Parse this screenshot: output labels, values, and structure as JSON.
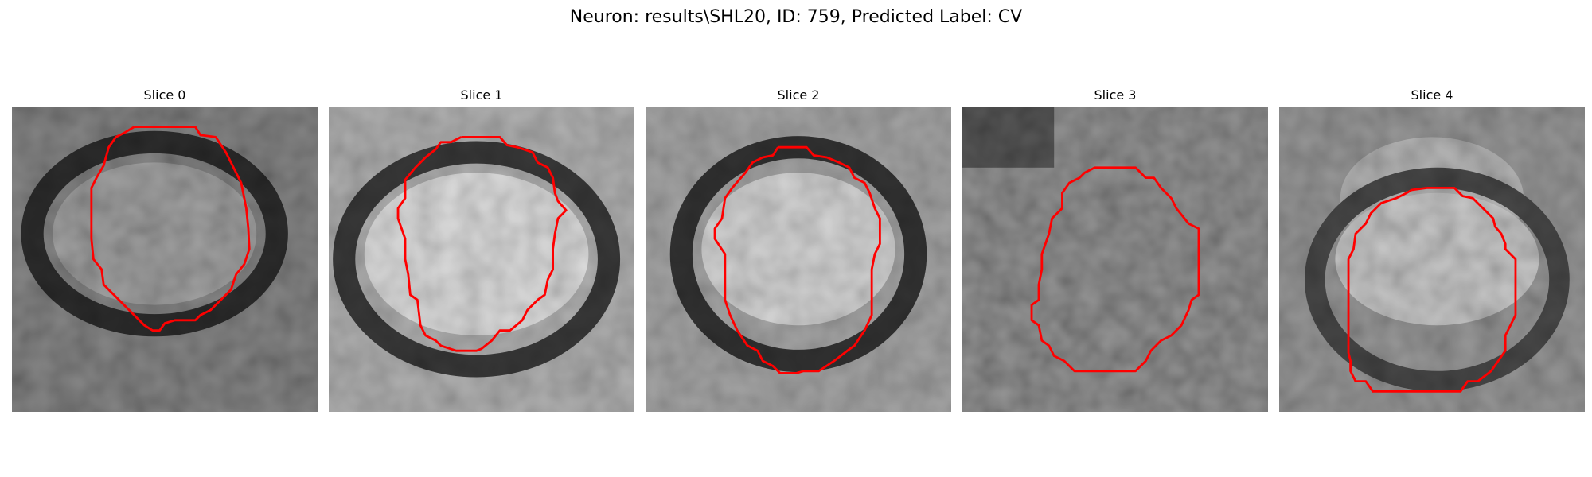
{
  "figure": {
    "title": "Neuron: results\\SHL20, ID: 759, Predicted Label: CV"
  },
  "panels": [
    {
      "title": "Slice 0"
    },
    {
      "title": "Slice 1"
    },
    {
      "title": "Slice 2"
    },
    {
      "title": "Slice 3"
    },
    {
      "title": "Slice 4"
    }
  ],
  "colors": {
    "contour": "#ff0000",
    "background": "#ffffff"
  }
}
